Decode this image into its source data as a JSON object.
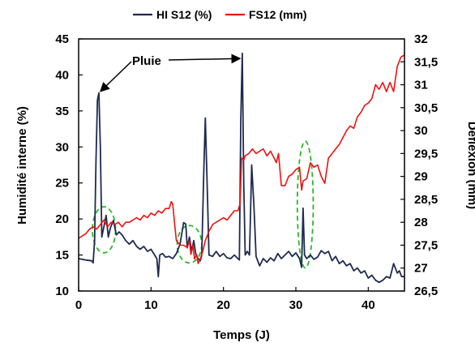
{
  "chart_data": {
    "type": "line",
    "title": "",
    "xlabel": "Temps (J)",
    "ylabel_left": "Humidité interne (%)",
    "ylabel_right": "Déflexion (mm)",
    "xlim": [
      0,
      45
    ],
    "ylim_left": [
      10,
      45
    ],
    "ylim_right": [
      26.5,
      32
    ],
    "x_ticks": [
      "0",
      "10",
      "20",
      "30",
      "40"
    ],
    "x_tick_values": [
      0,
      10,
      20,
      30,
      40
    ],
    "y_left_ticks": [
      "10",
      "15",
      "20",
      "25",
      "30",
      "35",
      "40",
      "45"
    ],
    "y_left_tick_values": [
      10,
      15,
      20,
      25,
      30,
      35,
      40,
      45
    ],
    "y_right_ticks": [
      "26,5",
      "27",
      "27,5",
      "28",
      "28,5",
      "29",
      "29,5",
      "30",
      "30,5",
      "31",
      "31,5",
      "32"
    ],
    "y_right_tick_values": [
      26.5,
      27,
      27.5,
      28,
      28.5,
      29,
      29.5,
      30,
      30.5,
      31,
      31.5,
      32
    ],
    "grid": false,
    "legend_position": "top",
    "annotation": "Pluie",
    "annotation_targets": [
      [
        2.8,
        37.5
      ],
      [
        22.5,
        42.5
      ]
    ],
    "highlight_ellipses": [
      {
        "x_center": 3.5,
        "y_center": 18.5,
        "x_halfwidth": 1.6,
        "y_halfwidth": 3.2
      },
      {
        "x_center": 15.3,
        "y_center": 16.5,
        "x_halfwidth": 1.7,
        "y_halfwidth": 2.6
      },
      {
        "x_center": 31.3,
        "y_center": 22,
        "x_halfwidth": 1.1,
        "y_halfwidth": 8.8
      }
    ],
    "series": [
      {
        "name": "HI S12 (%)",
        "axis": "left",
        "color": "#1f2a4f",
        "points": [
          [
            0,
            14.5
          ],
          [
            1,
            14.3
          ],
          [
            1.8,
            14.2
          ],
          [
            2,
            13.9
          ],
          [
            2.2,
            17
          ],
          [
            2.4,
            28
          ],
          [
            2.6,
            36.5
          ],
          [
            2.8,
            37.5
          ],
          [
            3,
            30
          ],
          [
            3.2,
            17.5
          ],
          [
            3.5,
            19
          ],
          [
            3.8,
            20.5
          ],
          [
            4.1,
            17.5
          ],
          [
            4.4,
            18.8
          ],
          [
            4.8,
            19.8
          ],
          [
            5.2,
            17.8
          ],
          [
            5.6,
            18.2
          ],
          [
            6,
            17.8
          ],
          [
            6.5,
            17
          ],
          [
            7,
            16.5
          ],
          [
            7.5,
            17
          ],
          [
            8,
            16.2
          ],
          [
            8.5,
            15.8
          ],
          [
            9,
            16.2
          ],
          [
            9.5,
            15.5
          ],
          [
            10,
            15.8
          ],
          [
            10.5,
            15
          ],
          [
            10.8,
            14.5
          ],
          [
            11,
            12
          ],
          [
            11.2,
            15
          ],
          [
            11.6,
            15.2
          ],
          [
            12,
            14.7
          ],
          [
            12.5,
            14.8
          ],
          [
            13,
            14.5
          ],
          [
            13.5,
            15.2
          ],
          [
            14,
            16.5
          ],
          [
            14.5,
            19.5
          ],
          [
            14.8,
            19.3
          ],
          [
            15,
            16
          ],
          [
            15.3,
            17.5
          ],
          [
            15.6,
            15.5
          ],
          [
            15.9,
            17
          ],
          [
            16.2,
            15
          ],
          [
            16.5,
            14.5
          ],
          [
            16.8,
            14.2
          ],
          [
            17,
            15
          ],
          [
            17.3,
            27
          ],
          [
            17.5,
            34
          ],
          [
            17.8,
            23
          ],
          [
            18,
            15
          ],
          [
            18.5,
            14.8
          ],
          [
            19,
            15.5
          ],
          [
            19.5,
            14.8
          ],
          [
            20,
            15.2
          ],
          [
            20.5,
            14.6
          ],
          [
            21,
            14.5
          ],
          [
            21.5,
            15
          ],
          [
            22,
            14.5
          ],
          [
            22.2,
            14.3
          ],
          [
            22.4,
            34
          ],
          [
            22.6,
            43
          ],
          [
            22.8,
            25
          ],
          [
            23,
            15
          ],
          [
            23.3,
            15.5
          ],
          [
            23.6,
            15
          ],
          [
            23.9,
            27.5
          ],
          [
            24.2,
            22
          ],
          [
            24.5,
            14.8
          ],
          [
            25,
            13.5
          ],
          [
            25.5,
            14.5
          ],
          [
            26,
            14
          ],
          [
            26.5,
            14.6
          ],
          [
            27,
            14.2
          ],
          [
            27.5,
            15.2
          ],
          [
            28,
            14.5
          ],
          [
            28.5,
            15
          ],
          [
            29,
            15.5
          ],
          [
            29.5,
            14.8
          ],
          [
            30,
            15.3
          ],
          [
            30.5,
            14.5
          ],
          [
            30.8,
            13.3
          ],
          [
            31,
            21.5
          ],
          [
            31.2,
            15
          ],
          [
            31.5,
            14.5
          ],
          [
            32,
            15
          ],
          [
            32.5,
            14.4
          ],
          [
            33,
            14.7
          ],
          [
            33.5,
            15.6
          ],
          [
            34,
            15.2
          ],
          [
            34.5,
            15.5
          ],
          [
            35,
            14.2
          ],
          [
            35.5,
            14.8
          ],
          [
            36,
            13.8
          ],
          [
            36.5,
            14.2
          ],
          [
            37,
            13.5
          ],
          [
            37.5,
            13.8
          ],
          [
            38,
            12.8
          ],
          [
            38.5,
            13.2
          ],
          [
            39,
            12.5
          ],
          [
            39.5,
            12.8
          ],
          [
            40,
            11.8
          ],
          [
            40.5,
            12.2
          ],
          [
            41,
            11.5
          ],
          [
            41.5,
            11.2
          ],
          [
            42,
            11.5
          ],
          [
            42.5,
            12
          ],
          [
            43,
            11.8
          ],
          [
            43.5,
            13.8
          ],
          [
            44,
            12.5
          ],
          [
            44.3,
            12.8
          ],
          [
            44.6,
            12
          ],
          [
            45,
            12
          ]
        ]
      },
      {
        "name": "FS12 (mm)",
        "axis": "right",
        "color": "#ee1111",
        "points": [
          [
            0,
            27.65
          ],
          [
            0.5,
            27.7
          ],
          [
            1,
            27.75
          ],
          [
            1.5,
            27.85
          ],
          [
            2,
            27.9
          ],
          [
            2.5,
            27.85
          ],
          [
            3,
            27.95
          ],
          [
            3.5,
            28.05
          ],
          [
            4,
            27.9
          ],
          [
            4.5,
            28.0
          ],
          [
            5,
            27.95
          ],
          [
            5.5,
            28.0
          ],
          [
            6,
            27.9
          ],
          [
            6.5,
            28.0
          ],
          [
            7,
            28.0
          ],
          [
            7.5,
            28.05
          ],
          [
            8,
            28.1
          ],
          [
            8.5,
            28.05
          ],
          [
            9,
            28.15
          ],
          [
            9.5,
            28.1
          ],
          [
            10,
            28.2
          ],
          [
            10.5,
            28.15
          ],
          [
            11,
            28.25
          ],
          [
            11.5,
            28.2
          ],
          [
            12,
            28.3
          ],
          [
            12.5,
            28.3
          ],
          [
            12.8,
            28.45
          ],
          [
            13,
            28.4
          ],
          [
            13.3,
            27.9
          ],
          [
            13.5,
            27.6
          ],
          [
            14,
            27.5
          ],
          [
            14.5,
            27.5
          ],
          [
            15,
            27.45
          ],
          [
            15.3,
            27.6
          ],
          [
            15.5,
            27.3
          ],
          [
            15.8,
            27.5
          ],
          [
            16,
            27.2
          ],
          [
            16.3,
            27.3
          ],
          [
            16.5,
            27.1
          ],
          [
            16.8,
            27.2
          ],
          [
            17,
            27.3
          ],
          [
            17.2,
            27.4
          ],
          [
            17.5,
            27.6
          ],
          [
            18,
            27.8
          ],
          [
            18.5,
            27.95
          ],
          [
            19,
            28.0
          ],
          [
            19.5,
            28.05
          ],
          [
            20,
            28.1
          ],
          [
            20.5,
            28.05
          ],
          [
            21,
            28.15
          ],
          [
            21.5,
            28.25
          ],
          [
            22,
            28.25
          ],
          [
            22.3,
            28.4
          ],
          [
            22.5,
            29.4
          ],
          [
            22.8,
            29.35
          ],
          [
            23,
            29.45
          ],
          [
            23.5,
            29.5
          ],
          [
            24,
            29.6
          ],
          [
            24.5,
            29.5
          ],
          [
            25,
            29.55
          ],
          [
            25.5,
            29.6
          ],
          [
            26,
            29.45
          ],
          [
            26.5,
            29.55
          ],
          [
            27,
            29.4
          ],
          [
            27.3,
            29.3
          ],
          [
            27.6,
            29.5
          ],
          [
            28,
            28.8
          ],
          [
            28.5,
            28.8
          ],
          [
            29,
            29.0
          ],
          [
            29.5,
            29.05
          ],
          [
            30,
            29.15
          ],
          [
            30.5,
            29.2
          ],
          [
            30.8,
            28.7
          ],
          [
            31,
            28.9
          ],
          [
            31.5,
            28.95
          ],
          [
            32,
            29.3
          ],
          [
            32.5,
            29.2
          ],
          [
            33,
            29.25
          ],
          [
            33.5,
            29.0
          ],
          [
            34,
            28.85
          ],
          [
            34.5,
            29.4
          ],
          [
            35,
            29.5
          ],
          [
            35.5,
            29.6
          ],
          [
            36,
            29.7
          ],
          [
            36.5,
            29.85
          ],
          [
            37,
            30.0
          ],
          [
            37.5,
            30.1
          ],
          [
            38,
            30.05
          ],
          [
            38.5,
            30.3
          ],
          [
            39,
            30.4
          ],
          [
            39.5,
            30.55
          ],
          [
            40,
            30.6
          ],
          [
            40.5,
            30.7
          ],
          [
            41,
            31.0
          ],
          [
            41.5,
            30.9
          ],
          [
            42,
            31.05
          ],
          [
            42.5,
            30.85
          ],
          [
            43,
            31.05
          ],
          [
            43.5,
            30.85
          ],
          [
            44,
            31.4
          ],
          [
            44.5,
            31.6
          ],
          [
            45,
            31.65
          ]
        ]
      }
    ]
  }
}
